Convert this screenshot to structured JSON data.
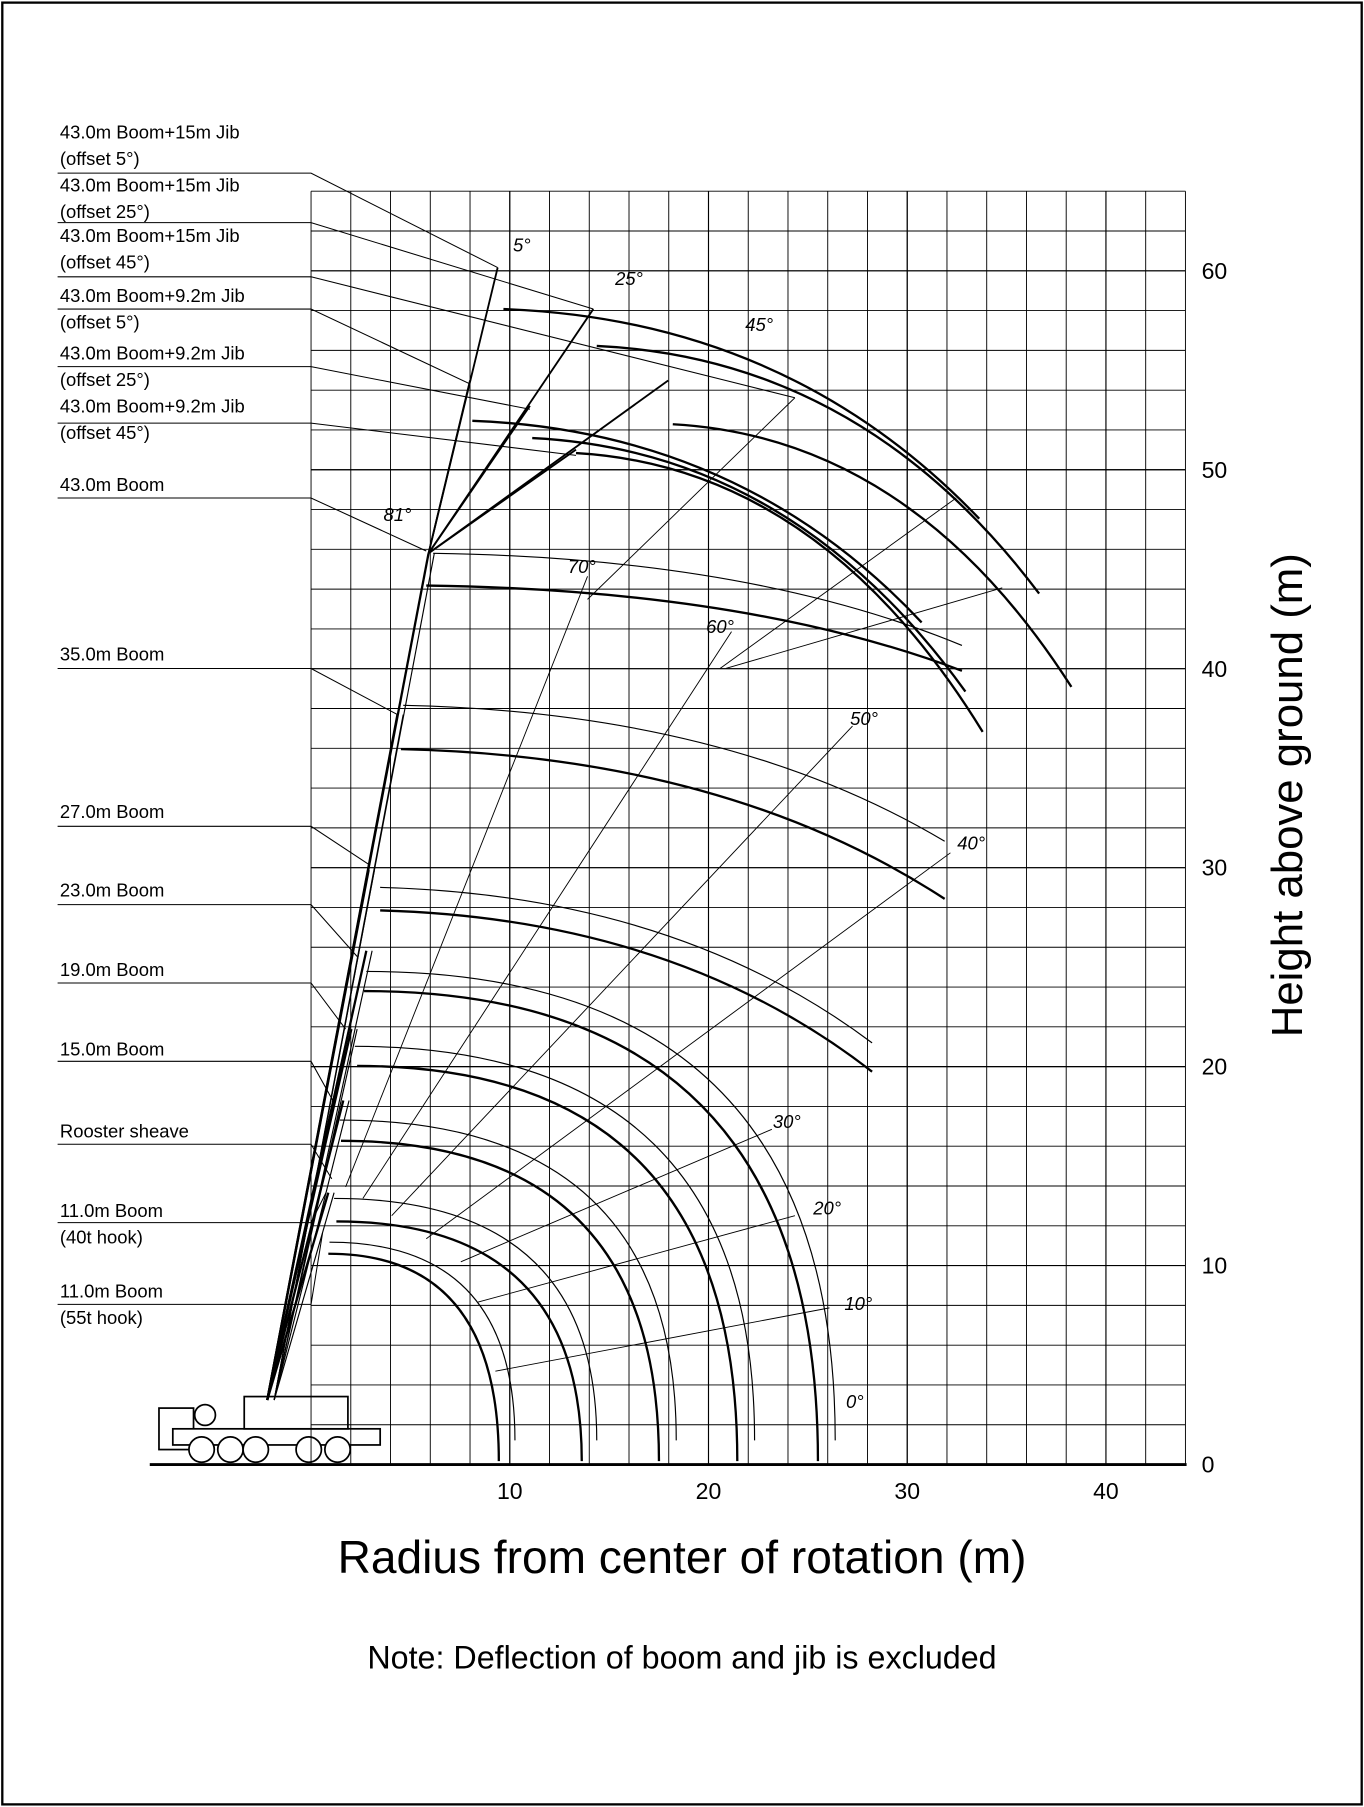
{
  "axes": {
    "xlim": [
      0,
      44
    ],
    "ylim": [
      0,
      64
    ],
    "xticks": [
      10,
      20,
      30,
      40
    ],
    "yticks": [
      0,
      10,
      20,
      30,
      40,
      50,
      60
    ],
    "xlabel": "Radius from center of rotation (m)",
    "ylabel": "Height above ground (m)"
  },
  "labels": [
    {
      "lines": [
        "43.0m Boom+15m Jib",
        "(offset 5°)"
      ]
    },
    {
      "lines": [
        "43.0m Boom+15m Jib",
        "(offset 25°)"
      ]
    },
    {
      "lines": [
        "43.0m Boom+15m Jib",
        "(offset 45°)"
      ]
    },
    {
      "lines": [
        "43.0m Boom+9.2m Jib",
        "(offset 5°)"
      ]
    },
    {
      "lines": [
        "43.0m Boom+9.2m Jib",
        "(offset 25°)"
      ]
    },
    {
      "lines": [
        "43.0m Boom+9.2m Jib",
        "(offset 45°)"
      ]
    },
    {
      "lines": [
        "43.0m Boom"
      ]
    },
    {
      "lines": [
        "35.0m Boom"
      ]
    },
    {
      "lines": [
        "27.0m Boom"
      ]
    },
    {
      "lines": [
        "23.0m Boom"
      ]
    },
    {
      "lines": [
        "19.0m Boom"
      ]
    },
    {
      "lines": [
        "15.0m Boom"
      ]
    },
    {
      "lines": [
        "Rooster sheave"
      ]
    },
    {
      "lines": [
        "11.0m Boom",
        "(40t hook)"
      ]
    },
    {
      "lines": [
        "11.0m Boom",
        "(55t hook)"
      ]
    }
  ],
  "angles": [
    "5°",
    "25°",
    "45°",
    "81°",
    "70°",
    "60°",
    "50°",
    "40°",
    "30°",
    "20°",
    "10°",
    "0°"
  ],
  "note": "Note: Deflection of boom and jib is excluded"
}
